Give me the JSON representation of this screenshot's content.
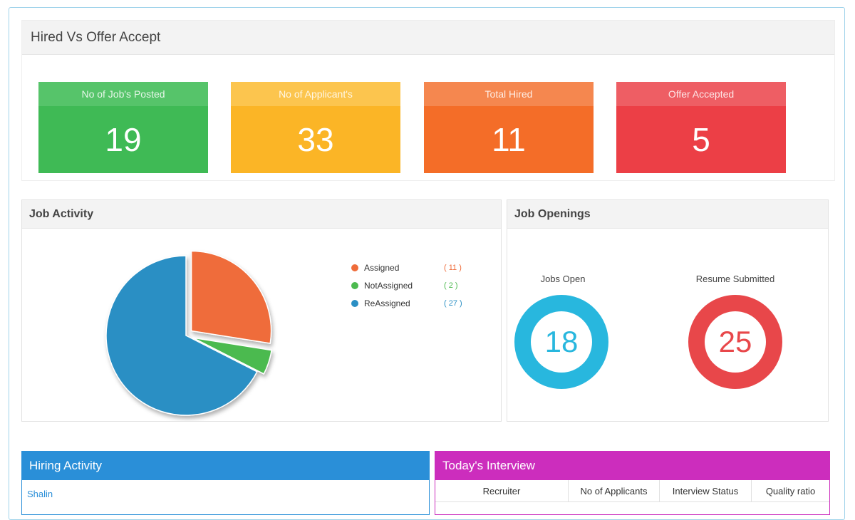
{
  "hired_panel": {
    "title": "Hired Vs Offer Accept",
    "stats": [
      {
        "label": "No of Job's Posted",
        "value": "19",
        "header_color": "#56c46a",
        "body_color": "#3fba55"
      },
      {
        "label": "No of Applicant's",
        "value": "33",
        "header_color": "#fcc54e",
        "body_color": "#fbb526"
      },
      {
        "label": "Total Hired",
        "value": "11",
        "header_color": "#f5874f",
        "body_color": "#f46d28"
      },
      {
        "label": "Offer Accepted",
        "value": "5",
        "header_color": "#ee5e64",
        "body_color": "#ec3f46"
      }
    ]
  },
  "job_activity": {
    "title": "Job Activity",
    "legend": [
      {
        "name": "Assigned",
        "count": "( 11 )",
        "color": "#ef6c3a"
      },
      {
        "name": "NotAssigned",
        "count": "( 2 )",
        "color": "#4cba4f"
      },
      {
        "name": "ReAssigned",
        "count": "( 27 )",
        "color": "#2a8fc4"
      }
    ]
  },
  "chart_data": {
    "type": "pie",
    "categories": [
      "Assigned",
      "NotAssigned",
      "ReAssigned"
    ],
    "values": [
      11,
      2,
      27
    ],
    "colors": [
      "#ef6c3a",
      "#4cba4f",
      "#2a8fc4"
    ],
    "legend_placement": "right"
  },
  "job_openings": {
    "title": "Job Openings",
    "jobs_open": {
      "label": "Jobs Open",
      "value": "18",
      "color": "#28b7de"
    },
    "resume_submitted": {
      "label": "Resume Submitted",
      "value": "25",
      "color": "#e8474a"
    }
  },
  "hiring_activity": {
    "title": "Hiring Activity",
    "first_item": "Shalin"
  },
  "todays_interview": {
    "title": "Today's Interview",
    "columns": [
      "Recruiter",
      "No of Applicants",
      "Interview Status",
      "Quality ratio"
    ]
  }
}
